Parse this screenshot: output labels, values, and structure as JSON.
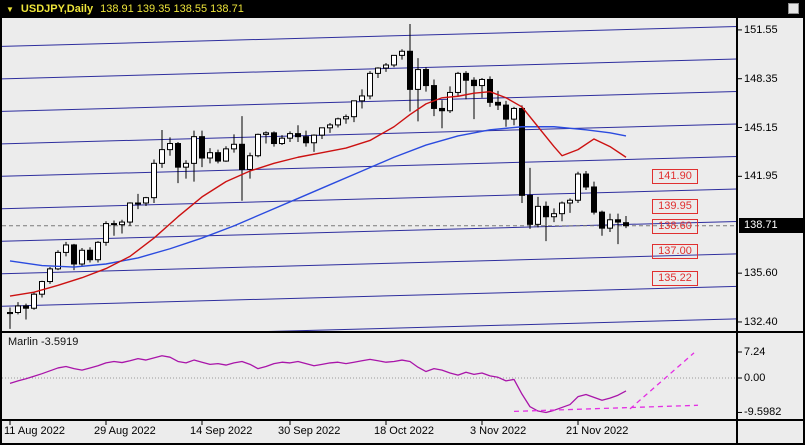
{
  "title_bar": {
    "dropdown_icon": "▼",
    "symbol": "USDJPY,Daily",
    "ohlc": "138.91 139.35 138.55 138.71"
  },
  "colors": {
    "pane_bg": "#ececec",
    "frame": "#000000",
    "title_text": "#ede43a",
    "bull": "#ffffff",
    "bear": "#000000",
    "wick": "#000000",
    "ma_fast": "#cc1111",
    "ma_slow": "#2b4bdf",
    "channel": "#2e2e9e",
    "indicator_line": "#a915a9",
    "indicator_forecast": "#e32ee3",
    "level_red": "#e03030",
    "badge_bg": "#000000",
    "badge_text": "#ffffff",
    "axis_text": "#000000"
  },
  "chart_data": [
    {
      "type": "candlestick",
      "symbol": "USDJPY",
      "timeframe": "Daily",
      "ylim": [
        131.8,
        152.3
      ],
      "current_price": 138.71,
      "current_price_text": "138.71",
      "y_axis_ticks": [
        {
          "text": "151.55",
          "price": 151.55
        },
        {
          "text": "148.35",
          "price": 148.35
        },
        {
          "text": "145.15",
          "price": 145.15
        },
        {
          "text": "141.95",
          "price": 141.95
        },
        {
          "text": "135.60",
          "price": 135.6
        },
        {
          "text": "132.40",
          "price": 132.4
        }
      ],
      "x_axis_ticks": [
        {
          "idx": 0,
          "text": "11 Aug 2022"
        },
        {
          "idx": 12,
          "text": "29 Aug 2022"
        },
        {
          "idx": 24,
          "text": "14 Sep 2022"
        },
        {
          "idx": 35,
          "text": "30 Sep 2022"
        },
        {
          "idx": 47,
          "text": "18 Oct 2022"
        },
        {
          "idx": 59,
          "text": "3 Nov 2022"
        },
        {
          "idx": 71,
          "text": "21 Nov 2022"
        }
      ],
      "level_labels": [
        {
          "text": "141.90",
          "price": 141.9
        },
        {
          "text": "139.95",
          "price": 139.95
        },
        {
          "text": "138.60",
          "price": 138.6
        },
        {
          "text": "137.00",
          "price": 137.0
        },
        {
          "text": "135.22",
          "price": 135.22
        }
      ],
      "channel_lines": {
        "count": 11,
        "top_price_at_left": 152.6,
        "price_step": 2.13,
        "rise_across": 1.3
      },
      "ma_fast_red": [
        [
          0,
          134.1
        ],
        [
          3,
          134.35
        ],
        [
          6,
          134.8
        ],
        [
          9,
          135.3
        ],
        [
          12,
          135.9
        ],
        [
          15,
          136.7
        ],
        [
          18,
          137.9
        ],
        [
          21,
          139.3
        ],
        [
          24,
          140.6
        ],
        [
          27,
          141.6
        ],
        [
          30,
          142.3
        ],
        [
          33,
          142.8
        ],
        [
          36,
          143.2
        ],
        [
          39,
          143.5
        ],
        [
          42,
          143.8
        ],
        [
          45,
          144.3
        ],
        [
          48,
          145.2
        ],
        [
          50,
          146.0
        ],
        [
          52,
          146.7
        ],
        [
          54,
          147.1
        ],
        [
          56,
          147.2
        ],
        [
          58,
          147.4
        ],
        [
          60,
          147.5
        ],
        [
          62,
          147.1
        ],
        [
          64,
          146.5
        ],
        [
          66,
          145.2
        ],
        [
          68,
          143.9
        ],
        [
          69,
          143.3
        ],
        [
          71,
          143.7
        ],
        [
          73,
          144.4
        ],
        [
          75,
          143.9
        ],
        [
          77,
          143.2
        ]
      ],
      "ma_slow_blue": [
        [
          0,
          136.4
        ],
        [
          4,
          136.1
        ],
        [
          8,
          136.0
        ],
        [
          12,
          136.2
        ],
        [
          16,
          136.6
        ],
        [
          20,
          137.2
        ],
        [
          24,
          137.9
        ],
        [
          28,
          138.7
        ],
        [
          32,
          139.6
        ],
        [
          36,
          140.5
        ],
        [
          40,
          141.4
        ],
        [
          44,
          142.3
        ],
        [
          48,
          143.2
        ],
        [
          52,
          144.0
        ],
        [
          56,
          144.6
        ],
        [
          60,
          145.0
        ],
        [
          64,
          145.2
        ],
        [
          68,
          145.2
        ],
        [
          72,
          145.0
        ],
        [
          75,
          144.8
        ],
        [
          77,
          144.6
        ]
      ],
      "candles": [
        [
          "2022-08-11",
          132.95,
          133.35,
          131.95,
          133.02
        ],
        [
          "2022-08-12",
          133.02,
          133.7,
          132.9,
          133.45
        ],
        [
          "2022-08-15",
          133.45,
          133.6,
          132.56,
          133.3
        ],
        [
          "2022-08-16",
          133.3,
          134.35,
          133.2,
          134.22
        ],
        [
          "2022-08-17",
          134.22,
          135.1,
          134.0,
          135.05
        ],
        [
          "2022-08-18",
          135.05,
          136.0,
          134.9,
          135.88
        ],
        [
          "2022-08-19",
          135.88,
          137.1,
          135.8,
          136.96
        ],
        [
          "2022-08-22",
          136.96,
          137.65,
          136.7,
          137.45
        ],
        [
          "2022-08-23",
          137.45,
          137.52,
          135.8,
          136.2
        ],
        [
          "2022-08-24",
          136.2,
          137.25,
          136.0,
          137.1
        ],
        [
          "2022-08-25",
          137.1,
          137.3,
          136.3,
          136.48
        ],
        [
          "2022-08-26",
          136.48,
          137.7,
          136.3,
          137.62
        ],
        [
          "2022-08-29",
          137.62,
          139.0,
          137.4,
          138.85
        ],
        [
          "2022-08-30",
          138.85,
          139.05,
          138.05,
          138.78
        ],
        [
          "2022-08-31",
          138.78,
          139.1,
          138.2,
          138.95
        ],
        [
          "2022-09-01",
          138.95,
          140.25,
          138.7,
          140.2
        ],
        [
          "2022-09-02",
          140.2,
          140.8,
          139.8,
          140.2
        ],
        [
          "2022-09-05",
          140.2,
          140.6,
          140.0,
          140.55
        ],
        [
          "2022-09-06",
          140.55,
          143.05,
          140.2,
          142.8
        ],
        [
          "2022-09-07",
          142.8,
          144.99,
          142.5,
          143.7
        ],
        [
          "2022-09-08",
          143.7,
          144.5,
          143.3,
          144.1
        ],
        [
          "2022-09-09",
          144.1,
          144.2,
          141.5,
          142.55
        ],
        [
          "2022-09-12",
          142.55,
          143.0,
          141.8,
          142.8
        ],
        [
          "2022-09-13",
          142.8,
          144.95,
          141.6,
          144.55
        ],
        [
          "2022-09-14",
          144.55,
          144.95,
          142.55,
          143.15
        ],
        [
          "2022-09-15",
          143.15,
          143.8,
          142.8,
          143.5
        ],
        [
          "2022-09-16",
          143.5,
          143.7,
          142.8,
          142.95
        ],
        [
          "2022-09-20",
          142.95,
          143.92,
          142.9,
          143.75
        ],
        [
          "2022-09-21",
          143.75,
          144.7,
          143.5,
          144.05
        ],
        [
          "2022-09-22",
          144.05,
          145.9,
          140.35,
          142.4
        ],
        [
          "2022-09-23",
          142.4,
          143.5,
          141.8,
          143.3
        ],
        [
          "2022-09-26",
          143.3,
          144.75,
          143.2,
          144.7
        ],
        [
          "2022-09-27",
          144.7,
          144.9,
          144.1,
          144.8
        ],
        [
          "2022-09-28",
          144.8,
          144.9,
          143.9,
          144.1
        ],
        [
          "2022-09-29",
          144.1,
          144.65,
          144.0,
          144.45
        ],
        [
          "2022-09-30",
          144.45,
          144.9,
          144.2,
          144.75
        ],
        [
          "2022-10-03",
          144.75,
          145.3,
          144.2,
          144.55
        ],
        [
          "2022-10-04",
          144.55,
          144.95,
          143.9,
          144.15
        ],
        [
          "2022-10-05",
          144.15,
          144.7,
          143.55,
          144.65
        ],
        [
          "2022-10-06",
          144.65,
          145.15,
          144.4,
          145.13
        ],
        [
          "2022-10-07",
          145.13,
          145.45,
          144.8,
          145.32
        ],
        [
          "2022-10-10",
          145.32,
          145.8,
          145.15,
          145.72
        ],
        [
          "2022-10-11",
          145.72,
          146.0,
          145.4,
          145.86
        ],
        [
          "2022-10-12",
          145.86,
          146.92,
          145.5,
          146.9
        ],
        [
          "2022-10-13",
          146.9,
          147.65,
          146.4,
          147.22
        ],
        [
          "2022-10-14",
          147.22,
          148.85,
          147.0,
          148.7
        ],
        [
          "2022-10-17",
          148.7,
          149.1,
          148.4,
          149.05
        ],
        [
          "2022-10-18",
          149.05,
          149.38,
          148.8,
          149.25
        ],
        [
          "2022-10-19",
          149.25,
          149.9,
          149.1,
          149.88
        ],
        [
          "2022-10-20",
          149.88,
          150.28,
          149.6,
          150.15
        ],
        [
          "2022-10-21",
          150.15,
          151.94,
          146.2,
          147.65
        ],
        [
          "2022-10-24",
          147.65,
          149.7,
          145.55,
          148.95
        ],
        [
          "2022-10-25",
          148.95,
          149.1,
          147.5,
          147.9
        ],
        [
          "2022-10-26",
          147.9,
          148.3,
          145.9,
          146.4
        ],
        [
          "2022-10-27",
          146.4,
          146.95,
          145.1,
          146.25
        ],
        [
          "2022-10-28",
          146.25,
          147.85,
          146.1,
          147.45
        ],
        [
          "2022-10-31",
          147.45,
          148.8,
          147.2,
          148.7
        ],
        [
          "2022-11-01",
          148.7,
          148.85,
          147.0,
          148.25
        ],
        [
          "2022-11-02",
          148.25,
          148.45,
          145.7,
          147.9
        ],
        [
          "2022-11-03",
          147.9,
          148.4,
          147.1,
          148.3
        ],
        [
          "2022-11-04",
          148.3,
          148.5,
          146.5,
          146.8
        ],
        [
          "2022-11-07",
          146.8,
          147.55,
          146.3,
          146.62
        ],
        [
          "2022-11-08",
          146.62,
          146.9,
          145.2,
          145.7
        ],
        [
          "2022-11-09",
          145.7,
          146.5,
          145.3,
          146.4
        ],
        [
          "2022-11-10",
          146.4,
          146.6,
          140.2,
          140.7
        ],
        [
          "2022-11-11",
          140.7,
          142.5,
          138.5,
          138.8
        ],
        [
          "2022-11-14",
          138.8,
          140.6,
          138.6,
          139.98
        ],
        [
          "2022-11-15",
          139.98,
          140.3,
          137.7,
          139.3
        ],
        [
          "2022-11-16",
          139.3,
          139.85,
          138.95,
          139.5
        ],
        [
          "2022-11-17",
          139.5,
          140.3,
          139.0,
          140.2
        ],
        [
          "2022-11-18",
          140.2,
          140.5,
          139.55,
          140.38
        ],
        [
          "2022-11-21",
          140.38,
          142.25,
          140.2,
          142.1
        ],
        [
          "2022-11-22",
          142.1,
          142.3,
          141.05,
          141.25
        ],
        [
          "2022-11-23",
          141.25,
          141.6,
          139.45,
          139.6
        ],
        [
          "2022-11-24",
          139.6,
          139.7,
          138.05,
          138.55
        ],
        [
          "2022-11-25",
          138.55,
          139.5,
          138.3,
          139.1
        ],
        [
          "2022-11-28",
          139.1,
          139.5,
          137.5,
          138.95
        ],
        [
          "2022-11-29",
          138.91,
          139.35,
          138.55,
          138.71
        ]
      ]
    },
    {
      "type": "line",
      "name": "Marlin",
      "value_text": "-3.5919",
      "current_value": -3.5919,
      "ylim": [
        -11.5,
        8.5
      ],
      "y_ticks": [
        {
          "text": "7.24",
          "value": 7.24
        },
        {
          "text": "0.00",
          "value": 0
        },
        {
          "text": "-9.5982",
          "value": -9.5982
        }
      ],
      "values": [
        -1.5,
        -0.8,
        -0.2,
        0.5,
        1.2,
        2.0,
        2.8,
        3.2,
        2.6,
        2.2,
        2.8,
        3.4,
        4.2,
        4.6,
        4.3,
        4.8,
        5.4,
        5.0,
        5.6,
        6.2,
        5.8,
        4.6,
        4.2,
        5.0,
        4.4,
        3.8,
        4.0,
        3.6,
        4.2,
        4.6,
        3.8,
        2.6,
        3.2,
        4.0,
        4.4,
        4.2,
        4.6,
        4.0,
        3.4,
        3.8,
        4.2,
        4.4,
        4.0,
        4.4,
        4.8,
        5.2,
        4.8,
        4.4,
        4.6,
        5.0,
        4.6,
        3.0,
        1.8,
        2.6,
        2.2,
        1.4,
        0.8,
        1.6,
        1.0,
        1.4,
        0.6,
        0.2,
        -0.8,
        -0.4,
        -4.5,
        -8.0,
        -9.2,
        -9.6,
        -9.0,
        -8.2,
        -7.4,
        -5.2,
        -4.6,
        -5.4,
        -6.2,
        -5.6,
        -4.8,
        -3.5919
      ],
      "forecast_dashed": [
        {
          "from": [
            63,
            -9.3
          ],
          "to": [
            86,
            -7.6
          ]
        },
        {
          "from": [
            77.5,
            -8.6
          ],
          "to": [
            85.5,
            7.0
          ]
        }
      ]
    }
  ]
}
